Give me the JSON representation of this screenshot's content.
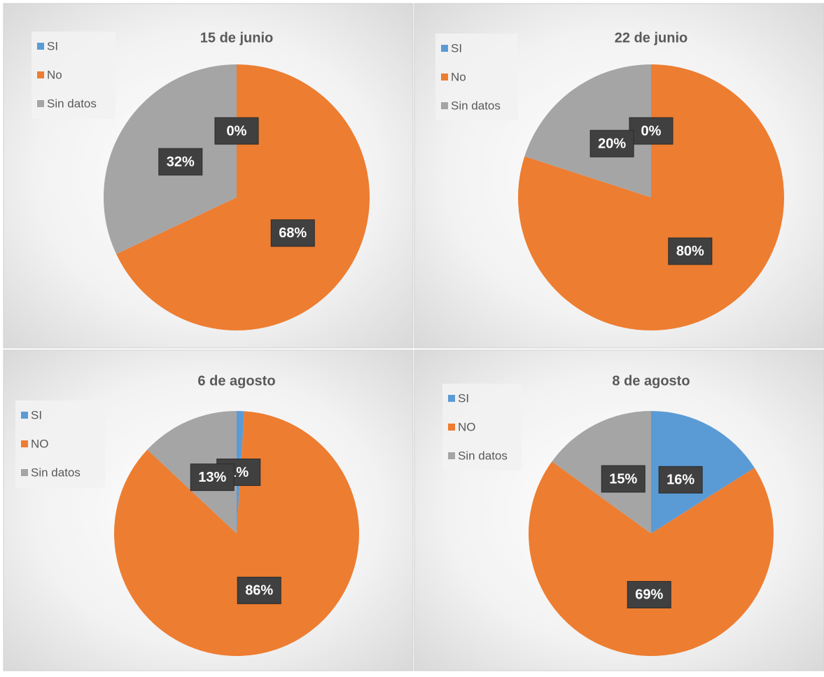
{
  "chart_data": [
    {
      "type": "pie",
      "title": "15 de junio",
      "categories": [
        "SI",
        "No",
        "Sin datos"
      ],
      "values": [
        0,
        68,
        32
      ],
      "value_labels": [
        "0%",
        "68%",
        "32%"
      ],
      "colors": [
        "#5b9bd5",
        "#ed7d31",
        "#a5a5a5"
      ]
    },
    {
      "type": "pie",
      "title": "22 de junio",
      "categories": [
        "SI",
        "No",
        "Sin datos"
      ],
      "values": [
        0,
        80,
        20
      ],
      "value_labels": [
        "0%",
        "80%",
        "20%"
      ],
      "colors": [
        "#5b9bd5",
        "#ed7d31",
        "#a5a5a5"
      ]
    },
    {
      "type": "pie",
      "title": "6 de agosto",
      "categories": [
        "SI",
        "NO",
        "Sin datos"
      ],
      "values": [
        1,
        86,
        13
      ],
      "value_labels": [
        "1%",
        "86%",
        "13%"
      ],
      "colors": [
        "#5b9bd5",
        "#ed7d31",
        "#a5a5a5"
      ]
    },
    {
      "type": "pie",
      "title": "8 de agosto",
      "categories": [
        "SI",
        "NO",
        "Sin datos"
      ],
      "values": [
        16,
        69,
        15
      ],
      "value_labels": [
        "16%",
        "69%",
        "15%"
      ],
      "colors": [
        "#5b9bd5",
        "#ed7d31",
        "#a5a5a5"
      ]
    }
  ]
}
